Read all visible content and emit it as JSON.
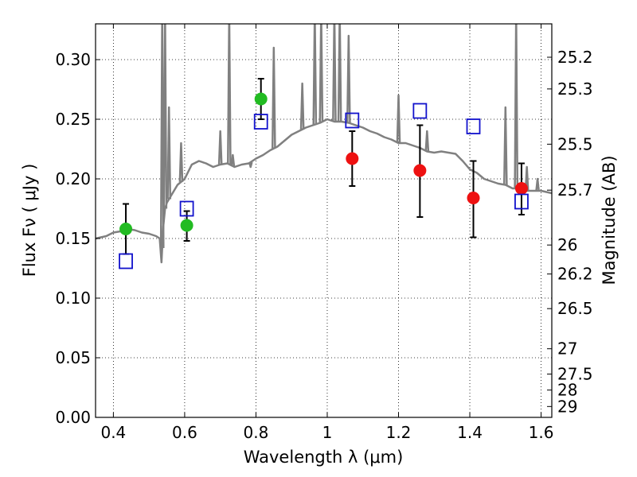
{
  "chart_data": {
    "type": "scatter",
    "xlabel": "Wavelength  λ (μm)",
    "ylabel": "Flux  Fν  ( μJy )",
    "ylabel_right": "Magnitude (AB)",
    "xlim": [
      0.35,
      1.63
    ],
    "ylim": [
      0.0,
      0.33
    ],
    "x_ticks": [
      0.4,
      0.6,
      0.8,
      1.0,
      1.2,
      1.4,
      1.6
    ],
    "x_tick_labels": [
      "0.4",
      "0.6",
      "0.8",
      "1",
      "1.2",
      "1.4",
      "1.6"
    ],
    "y_ticks": [
      0.0,
      0.05,
      0.1,
      0.15,
      0.2,
      0.25,
      0.3
    ],
    "y_tick_labels": [
      "0.00",
      "0.05",
      "0.10",
      "0.15",
      "0.20",
      "0.25",
      "0.30"
    ],
    "right_ticks": [
      25.2,
      25.3,
      25.5,
      25.7,
      26,
      26.2,
      26.5,
      27,
      27.5,
      28,
      29
    ],
    "right_tick_labels": [
      "25.2",
      "25.3",
      "25.5",
      "25.7",
      "26",
      "26.2",
      "26.5",
      "27",
      "27.5",
      "28",
      "29"
    ],
    "grid": true,
    "colors": {
      "model": "#808080",
      "green": "#22bb22",
      "red": "#ee1111",
      "model_box": "#1111cc",
      "errorbar": "#000000"
    },
    "series": [
      {
        "kind": "observed",
        "color": "green",
        "points": [
          {
            "x": 0.435,
            "y": 0.158,
            "yerr_low": 0.137,
            "yerr_high": 0.179
          },
          {
            "x": 0.606,
            "y": 0.161,
            "yerr_low": 0.148,
            "yerr_high": 0.173
          },
          {
            "x": 0.814,
            "y": 0.267,
            "yerr_low": 0.25,
            "yerr_high": 0.284
          }
        ]
      },
      {
        "kind": "observed",
        "color": "red",
        "points": [
          {
            "x": 1.07,
            "y": 0.217,
            "yerr_low": 0.194,
            "yerr_high": 0.24
          },
          {
            "x": 1.26,
            "y": 0.207,
            "yerr_low": 0.168,
            "yerr_high": 0.245
          },
          {
            "x": 1.41,
            "y": 0.184,
            "yerr_low": 0.151,
            "yerr_high": 0.215
          },
          {
            "x": 1.545,
            "y": 0.192,
            "yerr_low": 0.17,
            "yerr_high": 0.213
          }
        ]
      },
      {
        "kind": "model_photometry",
        "color": "model_box",
        "points": [
          {
            "x": 0.435,
            "y": 0.131
          },
          {
            "x": 0.606,
            "y": 0.175
          },
          {
            "x": 0.814,
            "y": 0.248
          },
          {
            "x": 1.07,
            "y": 0.249
          },
          {
            "x": 1.26,
            "y": 0.257
          },
          {
            "x": 1.41,
            "y": 0.244
          },
          {
            "x": 1.545,
            "y": 0.181
          }
        ]
      },
      {
        "kind": "model_spectrum",
        "color": "model",
        "x": [
          0.35,
          0.38,
          0.4,
          0.42,
          0.44,
          0.46,
          0.48,
          0.5,
          0.52,
          0.53,
          0.535,
          0.54,
          0.545,
          0.55,
          0.56,
          0.58,
          0.6,
          0.62,
          0.64,
          0.66,
          0.68,
          0.7,
          0.72,
          0.74,
          0.76,
          0.78,
          0.8,
          0.82,
          0.84,
          0.86,
          0.88,
          0.9,
          0.92,
          0.94,
          0.96,
          0.98,
          1.0,
          1.02,
          1.04,
          1.06,
          1.08,
          1.1,
          1.12,
          1.14,
          1.16,
          1.18,
          1.2,
          1.22,
          1.24,
          1.26,
          1.28,
          1.3,
          1.32,
          1.34,
          1.36,
          1.38,
          1.4,
          1.42,
          1.44,
          1.46,
          1.48,
          1.5,
          1.52,
          1.54,
          1.56,
          1.58,
          1.6,
          1.63
        ],
        "y": [
          0.15,
          0.152,
          0.155,
          0.156,
          0.158,
          0.157,
          0.155,
          0.154,
          0.152,
          0.15,
          0.13,
          0.16,
          0.175,
          0.18,
          0.185,
          0.195,
          0.2,
          0.212,
          0.215,
          0.213,
          0.21,
          0.212,
          0.213,
          0.21,
          0.212,
          0.213,
          0.217,
          0.22,
          0.224,
          0.227,
          0.232,
          0.237,
          0.24,
          0.243,
          0.245,
          0.247,
          0.25,
          0.248,
          0.248,
          0.247,
          0.245,
          0.243,
          0.24,
          0.238,
          0.235,
          0.233,
          0.23,
          0.23,
          0.228,
          0.226,
          0.223,
          0.222,
          0.223,
          0.222,
          0.221,
          0.215,
          0.208,
          0.205,
          0.2,
          0.198,
          0.196,
          0.195,
          0.192,
          0.192,
          0.19,
          0.19,
          0.19,
          0.188
        ]
      },
      {
        "kind": "emission_lines",
        "color": "model",
        "lines": [
          {
            "x": 0.537,
            "peak": 0.34
          },
          {
            "x": 0.545,
            "peak": 0.34
          },
          {
            "x": 0.556,
            "peak": 0.26
          },
          {
            "x": 0.59,
            "peak": 0.23
          },
          {
            "x": 0.7,
            "peak": 0.24
          },
          {
            "x": 0.725,
            "peak": 0.34
          },
          {
            "x": 0.735,
            "peak": 0.22
          },
          {
            "x": 0.785,
            "peak": 0.21
          },
          {
            "x": 0.85,
            "peak": 0.31
          },
          {
            "x": 0.93,
            "peak": 0.28
          },
          {
            "x": 0.965,
            "peak": 0.34
          },
          {
            "x": 0.983,
            "peak": 0.34
          },
          {
            "x": 1.02,
            "peak": 0.34
          },
          {
            "x": 1.035,
            "peak": 0.34
          },
          {
            "x": 1.06,
            "peak": 0.32
          },
          {
            "x": 1.2,
            "peak": 0.27
          },
          {
            "x": 1.28,
            "peak": 0.24
          },
          {
            "x": 1.5,
            "peak": 0.26
          },
          {
            "x": 1.53,
            "peak": 0.34
          },
          {
            "x": 1.56,
            "peak": 0.21
          },
          {
            "x": 1.59,
            "peak": 0.2
          }
        ]
      }
    ]
  }
}
